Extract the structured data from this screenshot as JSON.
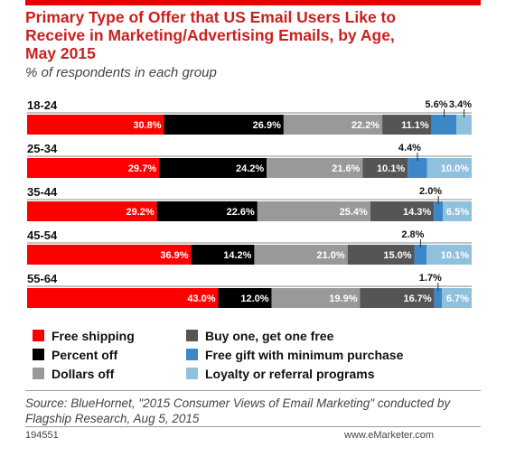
{
  "title": "Primary Type of Offer that US Email Users Like to\nReceive in Marketing/Advertising Emails, by Age,\nMay 2015",
  "subtitle": "% of respondents in each group",
  "colors": {
    "Free shipping": "#ff0000",
    "Percent off": "#000000",
    "Dollars off": "#999999",
    "Buy one, get one free": "#555555",
    "Free gift with minimum purchase": "#3b87c8",
    "Loyalty or referral programs": "#8fc1dc"
  },
  "chart_data": {
    "type": "bar",
    "orientation": "horizontal",
    "stacked": true,
    "categories": [
      "18-24",
      "25-34",
      "35-44",
      "45-54",
      "55-64"
    ],
    "series": [
      {
        "name": "Free shipping",
        "values": [
          30.8,
          29.7,
          29.2,
          36.9,
          43.0
        ],
        "labels": [
          "30.8%",
          "29.7%",
          "29.2%",
          "36.9%",
          "43.0%"
        ]
      },
      {
        "name": "Percent off",
        "values": [
          26.9,
          24.2,
          22.6,
          14.2,
          12.0
        ],
        "labels": [
          "26.9%",
          "24.2%",
          "22.6%",
          "14.2%",
          "12.0%"
        ]
      },
      {
        "name": "Dollars off",
        "values": [
          22.2,
          21.6,
          25.4,
          21.0,
          19.9
        ],
        "labels": [
          "22.2%",
          "21.6%",
          "25.4%",
          "21.0%",
          "19.9%"
        ]
      },
      {
        "name": "Buy one, get one free",
        "values": [
          11.1,
          10.1,
          14.3,
          15.0,
          16.7
        ],
        "labels": [
          "11.1%",
          "10.1%",
          "14.3%",
          "15.0%",
          "16.7%"
        ]
      },
      {
        "name": "Free gift with minimum purchase",
        "values": [
          5.6,
          4.4,
          2.0,
          2.8,
          1.7
        ],
        "labels": [
          "5.6%",
          "4.4%",
          "2.0%",
          "2.8%",
          "1.7%"
        ]
      },
      {
        "name": "Loyalty or referral programs",
        "values": [
          3.4,
          10.0,
          6.5,
          10.1,
          6.7
        ],
        "labels": [
          "3.4%",
          "10.0%",
          "6.5%",
          "10.1%",
          "6.7%"
        ]
      }
    ],
    "legend_position": "bottom",
    "grid": false
  },
  "source": "Source: BlueHornet, \"2015 Consumer Views of Email Marketing\" conducted by Flagship Research, Aug 5, 2015",
  "footer": {
    "id": "194551",
    "brand": "www.eMarketer.com"
  }
}
